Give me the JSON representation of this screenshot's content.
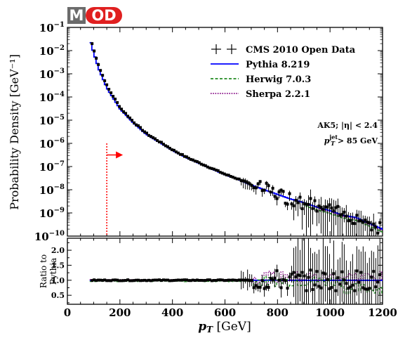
{
  "logo": {
    "text": "MOD"
  },
  "chart_data": [
    {
      "type": "line",
      "panel": "main",
      "ylabel": "Probability Density [GeV⁻¹]",
      "ylim_log10": [
        -10,
        -1
      ],
      "xlim": [
        0,
        1200
      ],
      "y_scale": "log",
      "y_ticks_exponent": [
        "-1",
        "-2",
        "-3",
        "-4",
        "-5",
        "-6",
        "-7",
        "-8",
        "-9",
        "-10"
      ],
      "legend": {
        "position": "top-right",
        "entries": [
          {
            "label": "CMS 2010 Open Data",
            "color": "#000000",
            "style": "errorbar"
          },
          {
            "label": "Pythia 8.219",
            "color": "#0000ff",
            "style": "solid"
          },
          {
            "label": "Herwig 7.0.3",
            "color": "#228b22",
            "style": "dashed"
          },
          {
            "label": "Sherpa 2.2.1",
            "color": "#800080",
            "style": "dotted"
          }
        ]
      },
      "annotations": {
        "line1": "AK5; |η| < 2.4",
        "line2_main": "p",
        "line2_sub": "T",
        "line2_sup": "jet",
        "line2_rest": " > 85 GeV"
      },
      "threshold_x": 150,
      "threshold_color": "#ff0000",
      "series_curve": {
        "x": [
          85,
          100,
          120,
          150,
          200,
          250,
          300,
          350,
          400,
          450,
          500,
          550,
          600,
          650,
          700,
          750,
          800,
          850,
          900,
          950,
          1000,
          1050,
          1100,
          1150,
          1200
        ],
        "log10y": [
          -1.5,
          -2.1,
          -2.8,
          -3.6,
          -4.5,
          -5.1,
          -5.6,
          -5.95,
          -6.3,
          -6.6,
          -6.85,
          -7.1,
          -7.35,
          -7.55,
          -7.8,
          -8.0,
          -8.2,
          -8.4,
          -8.55,
          -8.75,
          -8.9,
          -9.1,
          -9.2,
          -9.45,
          -9.7
        ]
      }
    },
    {
      "type": "line",
      "panel": "ratio",
      "ylabel_line1": "Ratio to",
      "ylabel_line2": "Pythia",
      "xlabel_main": "p",
      "xlabel_sub": "T",
      "xlabel_unit": " [GeV]",
      "xlim": [
        0,
        1200
      ],
      "ylim": [
        0.2,
        2.4
      ],
      "x_ticks": [
        "0",
        "200",
        "400",
        "600",
        "800",
        "1000",
        "1200"
      ],
      "y_ticks": [
        "0.5",
        "1.0",
        "1.5",
        "2.0"
      ]
    }
  ]
}
